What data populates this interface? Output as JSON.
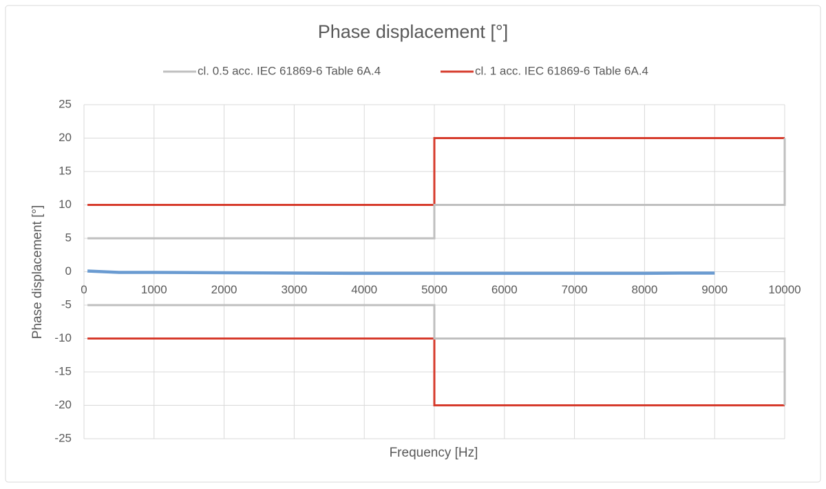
{
  "chart_data": {
    "type": "line",
    "title": "Phase displacement [°]",
    "x_label": "Frequency [Hz]",
    "y_label": "Phase displacement [°]",
    "xlim": [
      0,
      10000
    ],
    "xticks": [
      0,
      1000,
      2000,
      3000,
      4000,
      5000,
      6000,
      7000,
      8000,
      9000,
      10000
    ],
    "ylim": [
      -25,
      25
    ],
    "yticks": [
      -25,
      -20,
      -15,
      -10,
      -5,
      0,
      5,
      10,
      15,
      20,
      25
    ],
    "grid": true,
    "legend": "top",
    "series": [
      {
        "name": "cl. 0.5 acc. IEC 61869-6 Table 6A.4",
        "color": "#bfbfbf",
        "x": [
          50,
          5000,
          5000,
          10000,
          10000,
          10000,
          50,
          5000,
          5000,
          10000,
          10000
        ],
        "values": [
          5,
          5,
          10,
          10,
          20,
          null,
          -5,
          -5,
          -10,
          -10,
          -20
        ]
      },
      {
        "name": "cl. 1 acc. IEC 61869-6 Table 6A.4",
        "color": "#d63a2b",
        "x": [
          50,
          5000,
          5000,
          10000,
          10000,
          50,
          5000,
          5000,
          10000
        ],
        "values": [
          10,
          10,
          20,
          20,
          null,
          -10,
          -10,
          -20,
          -20
        ]
      },
      {
        "color": "#6a9bd1",
        "x": [
          50,
          500,
          1000,
          2000,
          3000,
          4000,
          5000,
          6000,
          7000,
          8000,
          8500,
          9000
        ],
        "values": [
          0.1,
          -0.1,
          -0.1,
          -0.15,
          -0.2,
          -0.25,
          -0.25,
          -0.25,
          -0.25,
          -0.25,
          -0.2,
          -0.2
        ]
      }
    ]
  }
}
